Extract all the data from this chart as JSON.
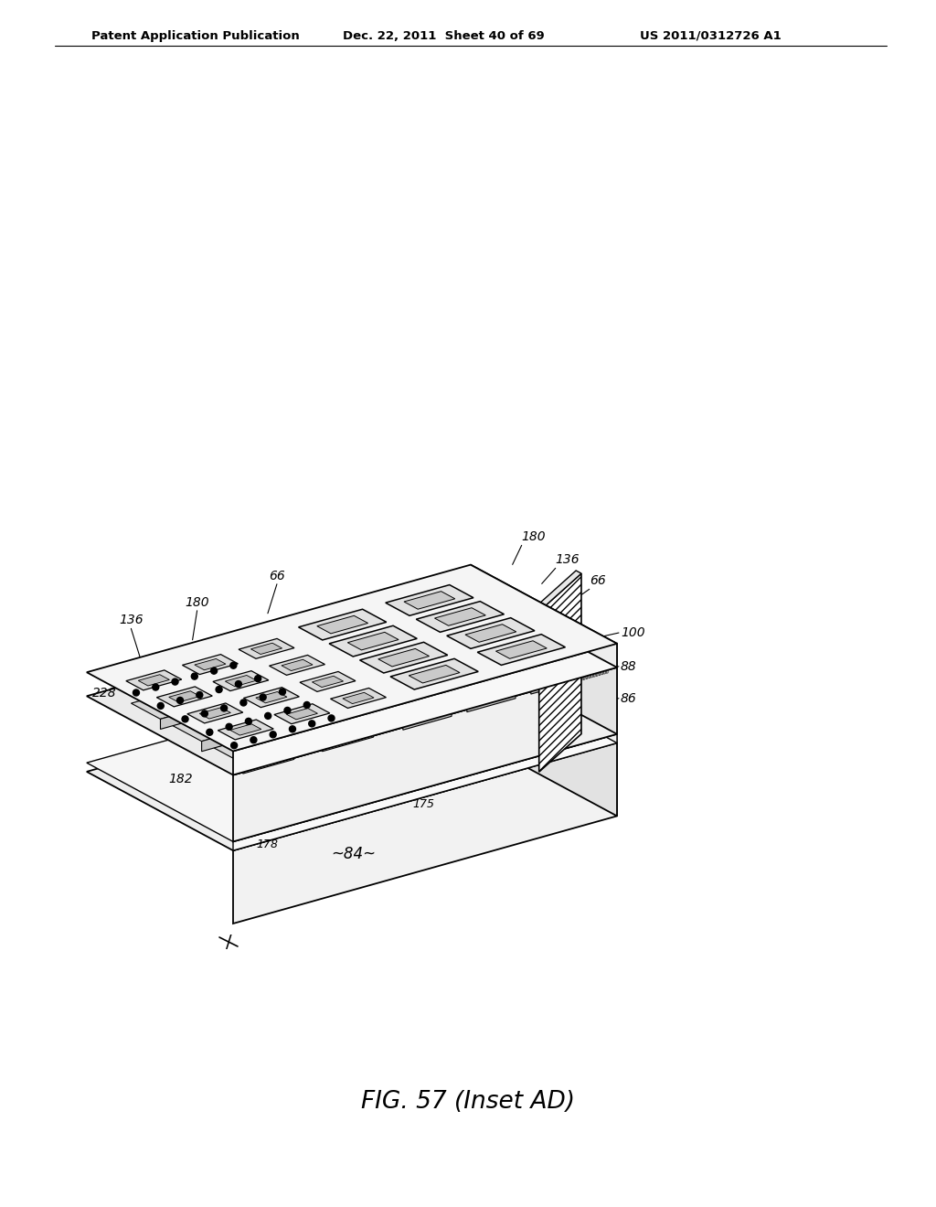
{
  "title": "FIG. 57 (Inset AD)",
  "header_left": "Patent Application Publication",
  "header_mid": "Dec. 22, 2011  Sheet 40 of 69",
  "header_right": "US 2011/0312726 A1",
  "bg_color": "#ffffff",
  "line_color": "#000000",
  "labels": {
    "136_top_left": "136",
    "180_top": "180",
    "66_top": "66",
    "180_right": "180",
    "136_right": "136",
    "66_right": "66",
    "228": "228",
    "182": "182",
    "100": "100",
    "88": "88",
    "86": "86",
    "175": "175",
    "178": "178",
    "84": "~84~"
  }
}
